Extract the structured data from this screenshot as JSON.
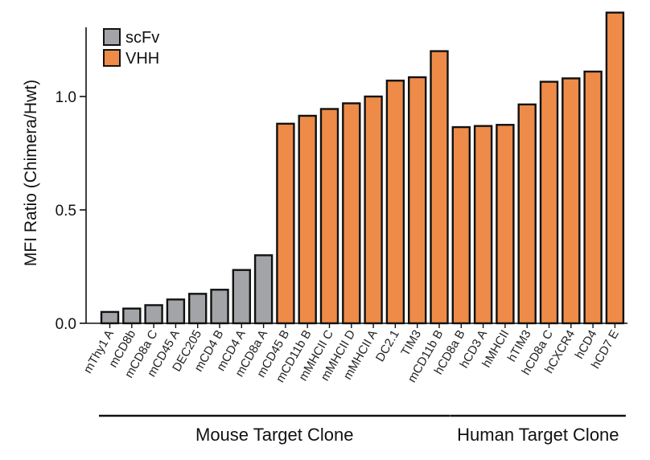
{
  "chart_data": {
    "type": "bar",
    "title": "",
    "xlabel": "",
    "ylabel": "MFI Ratio (Chimera/Hwt)",
    "ylim": [
      0,
      1.4
    ],
    "yticks": [
      0.0,
      0.5,
      1.0
    ],
    "ytick_labels": [
      "0.0",
      "0.5",
      "1.0"
    ],
    "legend": {
      "position": "top-left",
      "entries": [
        "scFv",
        "VHH"
      ]
    },
    "colors": {
      "scFv": "#a3a4a8",
      "VHH": "#ee8b48",
      "outline": "#111111"
    },
    "bars": [
      {
        "label": "mThy1 A",
        "value": 0.05,
        "series": "scFv"
      },
      {
        "label": "mCD8b",
        "value": 0.065,
        "series": "scFv"
      },
      {
        "label": "mCD8a C",
        "value": 0.08,
        "series": "scFv"
      },
      {
        "label": "mCD45 A",
        "value": 0.105,
        "series": "scFv"
      },
      {
        "label": "DEC205",
        "value": 0.13,
        "series": "scFv"
      },
      {
        "label": "mCD4 B",
        "value": 0.148,
        "series": "scFv"
      },
      {
        "label": "mCD4 A",
        "value": 0.235,
        "series": "scFv"
      },
      {
        "label": "mCD8a A",
        "value": 0.3,
        "series": "scFv"
      },
      {
        "label": "mCD45 B",
        "value": 0.88,
        "series": "VHH"
      },
      {
        "label": "mCD11b B",
        "value": 0.915,
        "series": "VHH"
      },
      {
        "label": "mMHCII C",
        "value": 0.945,
        "series": "VHH"
      },
      {
        "label": "mMHCII D",
        "value": 0.97,
        "series": "VHH"
      },
      {
        "label": "mMHCII A",
        "value": 1.0,
        "series": "VHH"
      },
      {
        "label": "DC2.1",
        "value": 1.07,
        "series": "VHH"
      },
      {
        "label": "TIM3",
        "value": 1.085,
        "series": "VHH"
      },
      {
        "label": "mCD11b B",
        "value": 1.2,
        "series": "VHH"
      },
      {
        "label": "hCD8a B",
        "value": 0.865,
        "series": "VHH"
      },
      {
        "label": "hCD3 A",
        "value": 0.87,
        "series": "VHH"
      },
      {
        "label": "hMHCII",
        "value": 0.875,
        "series": "VHH"
      },
      {
        "label": "hTIM3",
        "value": 0.965,
        "series": "VHH"
      },
      {
        "label": "hCD8a C",
        "value": 1.065,
        "series": "VHH"
      },
      {
        "label": "hCXCR4",
        "value": 1.08,
        "series": "VHH"
      },
      {
        "label": "hCD4",
        "value": 1.11,
        "series": "VHH"
      },
      {
        "label": "hCD7 E",
        "value": 1.37,
        "series": "VHH"
      }
    ],
    "groups": [
      {
        "label": "Mouse Target Clone",
        "start": 0,
        "end": 15
      },
      {
        "label": "Human Target Clone",
        "start": 16,
        "end": 23
      }
    ]
  }
}
